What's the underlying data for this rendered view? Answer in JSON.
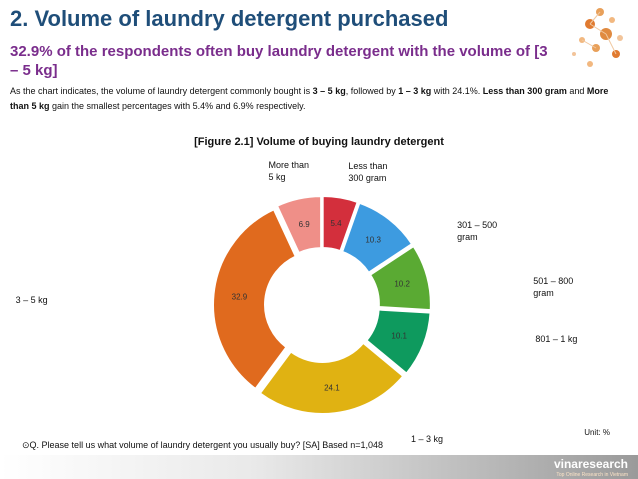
{
  "header": {
    "title": "2. Volume of laundry detergent purchased",
    "subtitle": "32.9% of the respondents often buy laundry detergent with the volume of [3 – 5 kg]"
  },
  "intro": {
    "p1": "As the chart indicates, the volume of laundry detergent commonly bought is ",
    "b1": "3 – 5 kg",
    "p2": ", followed by ",
    "b2": "1 – 3 kg",
    "p3": " with 24.1%. ",
    "b3": "Less than 300 gram",
    "p4": " and ",
    "b4": "More than 5 kg",
    "p5": " gain the smallest percentages with 5.4% and 6.9% respectively."
  },
  "chart_data": {
    "type": "pie",
    "title": "[Figure 2.1] Volume of buying laundry detergent",
    "donut": true,
    "start_angle_deg": 0,
    "direction": "clockwise",
    "slices": [
      {
        "label": "Less than\n300 gram",
        "value": 5.4,
        "color": "#d32f3c"
      },
      {
        "label": "301 – 500\ngram",
        "value": 10.3,
        "color": "#3d9be0"
      },
      {
        "label": "501 – 800\ngram",
        "value": 10.2,
        "color": "#5aaa33"
      },
      {
        "label": "801 – 1 kg",
        "value": 10.1,
        "color": "#0e9a5e"
      },
      {
        "label": "1 – 3 kg",
        "value": 24.1,
        "color": "#e0b212"
      },
      {
        "label": "3 – 5 kg",
        "value": 32.9,
        "color": "#e06a1e"
      },
      {
        "label": "More than\n5 kg",
        "value": 6.9,
        "color": "#ef8f88"
      }
    ]
  },
  "footer": {
    "unit": "Unit: %",
    "question": "⊙Q. Please tell us what volume of laundry detergent you usually buy? [SA] Based n=1,048",
    "brand": "vinaresearch",
    "tagline": "Top Online Research in Vietnam"
  }
}
